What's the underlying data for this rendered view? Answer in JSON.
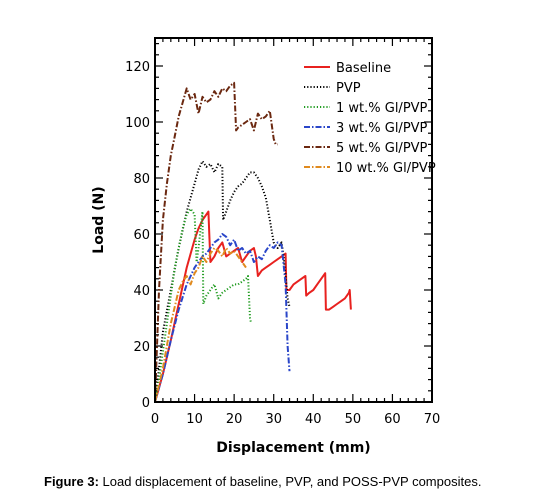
{
  "caption": {
    "label": "Figure 3:",
    "text": " Load displacement of baseline, PVP, and POSS-PVP composites."
  },
  "chart_data": {
    "type": "line",
    "xlabel": "Displacement (mm)",
    "ylabel": "Load (N)",
    "xlim": [
      0,
      70
    ],
    "ylim": [
      0,
      130
    ],
    "xticks": [
      0,
      10,
      20,
      30,
      40,
      50,
      60,
      70
    ],
    "yticks": [
      0,
      20,
      40,
      60,
      80,
      100,
      120
    ],
    "grid": false,
    "legend_position": "top-right",
    "series": [
      {
        "name": "Baseline",
        "color": "#e8211f",
        "dash": "solid",
        "x": [
          0,
          2,
          4,
          6,
          8,
          10,
          11,
          12,
          13,
          13.5,
          14,
          15,
          16,
          17,
          18,
          19,
          20,
          21,
          22,
          23,
          24,
          25,
          25.5,
          26,
          27,
          28,
          29,
          30,
          31,
          32,
          33,
          33.2,
          34,
          35,
          36,
          37,
          38,
          38.2,
          39,
          40,
          41,
          42,
          43,
          43.2,
          44,
          45,
          46,
          47,
          48,
          49,
          49.2,
          49.5
        ],
        "y": [
          0,
          10,
          22,
          35,
          48,
          58,
          62,
          65,
          67,
          68,
          50,
          52,
          55,
          57,
          52,
          53,
          54,
          55,
          50,
          52,
          54,
          55,
          52,
          45,
          47,
          48,
          49,
          50,
          51,
          52,
          53,
          40,
          40,
          42,
          43,
          44,
          45,
          38,
          39,
          40,
          42,
          44,
          46,
          33,
          33,
          34,
          35,
          36,
          37,
          39,
          40,
          33
        ]
      },
      {
        "name": "PVP",
        "color": "#000000",
        "dash": "dotted",
        "x": [
          0,
          1,
          2,
          4,
          6,
          8,
          10,
          11,
          12,
          13,
          14,
          15,
          16,
          17,
          17.2,
          18,
          19,
          20,
          21,
          22,
          23,
          24,
          25,
          26,
          27,
          28,
          29,
          30,
          31,
          32,
          32.5,
          33,
          33.5,
          34
        ],
        "y": [
          0,
          12,
          25,
          40,
          55,
          68,
          78,
          83,
          86,
          84,
          85,
          82,
          85,
          84,
          65,
          68,
          72,
          75,
          77,
          78,
          80,
          82,
          82,
          80,
          77,
          73,
          65,
          57,
          55,
          57,
          52,
          45,
          37,
          34
        ]
      },
      {
        "name": "1 wt.% Gl/PVP",
        "color": "#1f9b1f",
        "dash": "dotted",
        "x": [
          0,
          1,
          2,
          3,
          4,
          5,
          6,
          7,
          8,
          9,
          10,
          10.5,
          11,
          12,
          12.2,
          13,
          14,
          15,
          16,
          17,
          18,
          19,
          20,
          21,
          22,
          23,
          23.5,
          24,
          24.3
        ],
        "y": [
          0,
          8,
          18,
          28,
          38,
          48,
          55,
          62,
          67,
          69,
          67,
          50,
          55,
          68,
          35,
          38,
          40,
          42,
          37,
          39,
          40,
          41,
          42,
          42,
          43,
          44,
          45,
          30,
          28
        ]
      },
      {
        "name": "3 wt.% Gl/PVP",
        "color": "#2a46c9",
        "dash": "dashdot",
        "x": [
          0,
          2,
          4,
          6,
          8,
          10,
          11,
          12,
          13,
          14,
          15,
          16,
          17,
          18,
          19,
          20,
          21,
          22,
          23,
          24,
          25,
          26,
          27,
          28,
          29,
          30,
          31,
          32,
          33,
          33.5,
          34
        ],
        "y": [
          0,
          10,
          22,
          33,
          42,
          48,
          50,
          52,
          53,
          55,
          57,
          58,
          60,
          59,
          56,
          58,
          54,
          55,
          53,
          54,
          50,
          52,
          51,
          54,
          56,
          55,
          57,
          56,
          42,
          20,
          11
        ]
      },
      {
        "name": "5 wt.% Gl/PVP",
        "color": "#6b2810",
        "dash": "dashdot",
        "x": [
          0,
          1,
          2,
          3,
          4,
          5,
          6,
          7,
          8,
          9,
          10,
          11,
          12,
          13,
          14,
          15,
          16,
          17,
          18,
          19,
          20,
          20.5,
          21,
          22,
          23,
          24,
          25,
          26,
          27,
          28,
          29,
          30,
          30.5,
          31
        ],
        "y": [
          0,
          40,
          65,
          78,
          88,
          95,
          102,
          107,
          112,
          108,
          110,
          103,
          109,
          107,
          108,
          111,
          109,
          112,
          111,
          113,
          114,
          97,
          98,
          99,
          100,
          101,
          97,
          103,
          101,
          102,
          104,
          94,
          92,
          92
        ]
      },
      {
        "name": "10 wt.% Gl/PVP",
        "color": "#e08a1e",
        "dash": "dashdot",
        "x": [
          0,
          2,
          4,
          6,
          7,
          8,
          9,
          10,
          11,
          12,
          13,
          14,
          15,
          16,
          17,
          18,
          19,
          20,
          21,
          22,
          23
        ],
        "y": [
          0,
          12,
          28,
          40,
          43,
          45,
          42,
          46,
          48,
          52,
          50,
          53,
          55,
          54,
          52,
          55,
          53,
          54,
          52,
          50,
          48
        ]
      }
    ]
  }
}
